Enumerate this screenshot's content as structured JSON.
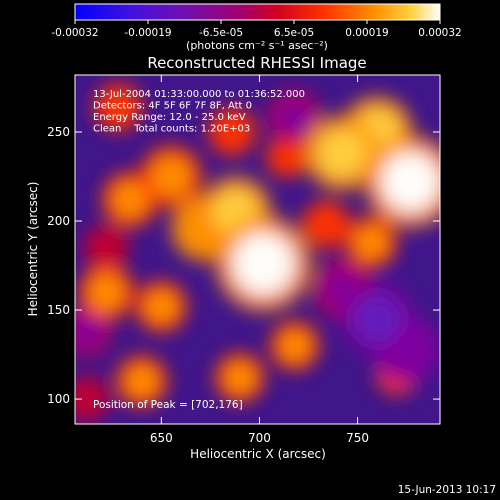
{
  "chart_data": {
    "type": "heatmap",
    "title": "Reconstructed RHESSI Image",
    "xlabel": "Heliocentric X (arcsec)",
    "ylabel": "Heliocentric Y (arcsec)",
    "xlim": [
      606,
      792
    ],
    "ylim": [
      86,
      282
    ],
    "x_ticks": [
      650,
      700,
      750
    ],
    "y_ticks": [
      100,
      150,
      200,
      250
    ],
    "colorbar": {
      "ticks": [
        "-0.00032",
        "-0.00019",
        "-6.5e-05",
        "6.5e-05",
        "0.00019",
        "0.00032"
      ],
      "unit_label": "(photons cm⁻² s⁻¹ asec⁻²)",
      "range": [
        -0.00032,
        0.00032
      ],
      "colors": [
        "#0000ff",
        "#6020c0",
        "#8000a0",
        "#c00030",
        "#ff3000",
        "#ff9000",
        "#ffd040",
        "#ffffff"
      ]
    },
    "annotations": [
      "13-Jul-2004 01:33:00.000 to 01:36:52.000",
      "Detectors: 4F 5F 6F 7F 8F, Att 0",
      "Energy Range: 12.0 - 25.0 keV",
      "Clean    Total counts: 1.20E+03"
    ],
    "peak_label": "Position of Peak = [702,176]",
    "peak": [
      702,
      176
    ],
    "sources": [
      {
        "x": 702,
        "y": 176,
        "value": 0.00032
      },
      {
        "x": 777,
        "y": 222,
        "value": 0.0003
      },
      {
        "x": 742,
        "y": 238,
        "value": 0.00022
      },
      {
        "x": 760,
        "y": 250,
        "value": 0.0002
      },
      {
        "x": 688,
        "y": 205,
        "value": 0.0002
      },
      {
        "x": 672,
        "y": 196,
        "value": 0.00018
      },
      {
        "x": 655,
        "y": 225,
        "value": 0.00016
      },
      {
        "x": 634,
        "y": 212,
        "value": 0.00013
      },
      {
        "x": 622,
        "y": 160,
        "value": 0.00013
      },
      {
        "x": 650,
        "y": 152,
        "value": 0.00011
      },
      {
        "x": 640,
        "y": 110,
        "value": 0.00011
      },
      {
        "x": 690,
        "y": 112,
        "value": 0.0001
      },
      {
        "x": 718,
        "y": 130,
        "value": 0.0001
      },
      {
        "x": 757,
        "y": 188,
        "value": 0.00011
      },
      {
        "x": 734,
        "y": 198,
        "value": 9e-05
      },
      {
        "x": 686,
        "y": 250,
        "value": 9e-05
      },
      {
        "x": 628,
        "y": 264,
        "value": 9e-05
      },
      {
        "x": 714,
        "y": 236,
        "value": 6e-05
      },
      {
        "x": 770,
        "y": 114,
        "value": 6e-05
      },
      {
        "x": 742,
        "y": 162,
        "value": -0.00014
      },
      {
        "x": 760,
        "y": 145,
        "value": -0.0002
      },
      {
        "x": 775,
        "y": 128,
        "value": -0.00018
      },
      {
        "x": 718,
        "y": 258,
        "value": -0.00012
      },
      {
        "x": 622,
        "y": 185,
        "value": -8e-05
      },
      {
        "x": 612,
        "y": 138,
        "value": -0.0001
      },
      {
        "x": 612,
        "y": 100,
        "value": -8e-05
      }
    ]
  },
  "footer": {
    "timestamp": "15-Jun-2013 10:17"
  }
}
